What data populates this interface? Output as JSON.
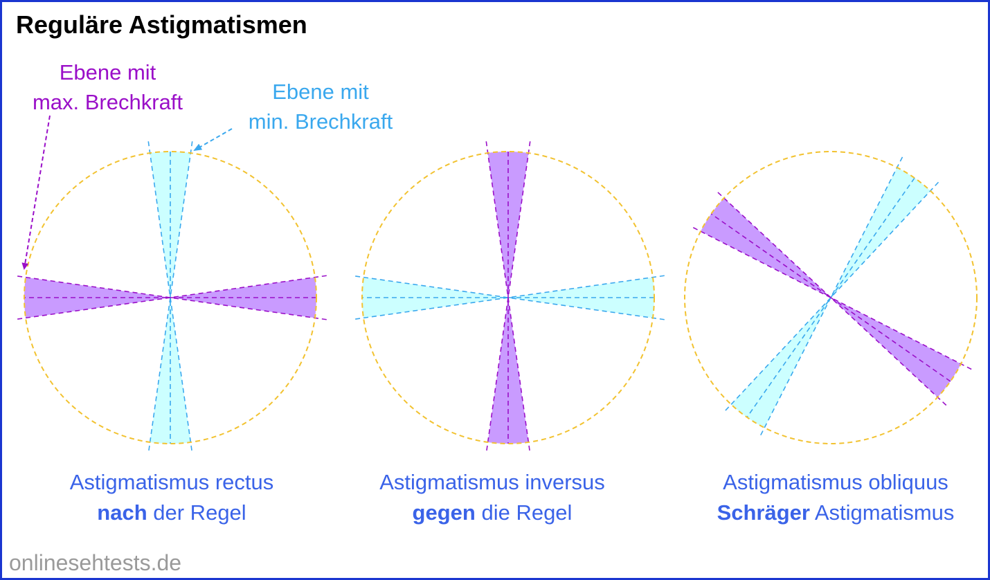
{
  "title": "Reguläre Astigmatismen",
  "annotations": {
    "max_plane": [
      "Ebene mit",
      "max. Brechkraft"
    ],
    "min_plane": [
      "Ebene mit",
      "min. Brechkraft"
    ]
  },
  "diagrams": [
    {
      "caption_line1": "Astigmatismus rectus",
      "caption_line2_bold": "nach",
      "caption_line2_rest": " der Regel",
      "max_meridian_deg": 0,
      "min_meridian_deg": 90
    },
    {
      "caption_line1": "Astigmatismus inversus",
      "caption_line2_bold": "gegen",
      "caption_line2_rest": " die Regel",
      "max_meridian_deg": 90,
      "min_meridian_deg": 0
    },
    {
      "caption_line1": "Astigmatismus obliquus",
      "caption_line2_bold": "Schräger",
      "caption_line2_rest": " Astigmatismus",
      "max_meridian_deg": -35,
      "min_meridian_deg": 55
    }
  ],
  "watermark": "onlinesehtests.de",
  "colors": {
    "frame": "#1a35d0",
    "max_plane": "#9a0fc8",
    "max_fill": "#c99bff",
    "min_plane": "#3aa8ee",
    "min_fill": "#ccffff",
    "circle": "#f2c230",
    "caption": "#3a63e8",
    "watermark": "#9a9a9a"
  }
}
